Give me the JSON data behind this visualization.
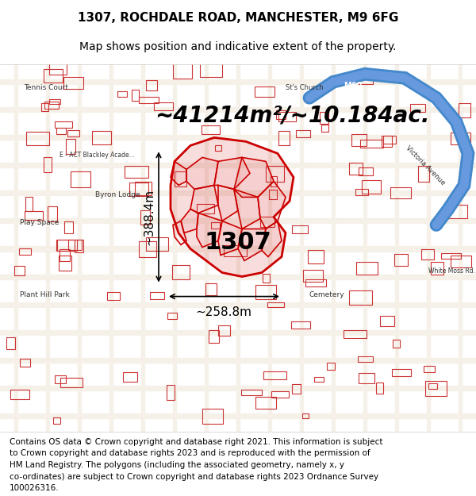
{
  "title_line1": "1307, ROCHDALE ROAD, MANCHESTER, M9 6FG",
  "title_line2": "Map shows position and indicative extent of the property.",
  "area_label": "~41214m²/~10.184ac.",
  "label_1307": "1307",
  "dim_left": "~388.4m",
  "dim_bottom": "~258.8m",
  "footer_lines": [
    "Contains OS data © Crown copyright and database right 2021. This information is subject",
    "to Crown copyright and database rights 2023 and is reproduced with the permission of",
    "HM Land Registry. The polygons (including the associated geometry, namely x, y",
    "co-ordinates) are subject to Crown copyright and database rights 2023 Ordnance Survey",
    "100026316."
  ],
  "title_fontsize": 11,
  "subtitle_fontsize": 10,
  "area_fontsize": 20,
  "label_fontsize": 22,
  "dim_fontsize": 11,
  "footer_fontsize": 7.5,
  "title_color": "#000000",
  "footer_color": "#000000",
  "polygon_color": "#cc0000",
  "map_label_color": "#333333"
}
